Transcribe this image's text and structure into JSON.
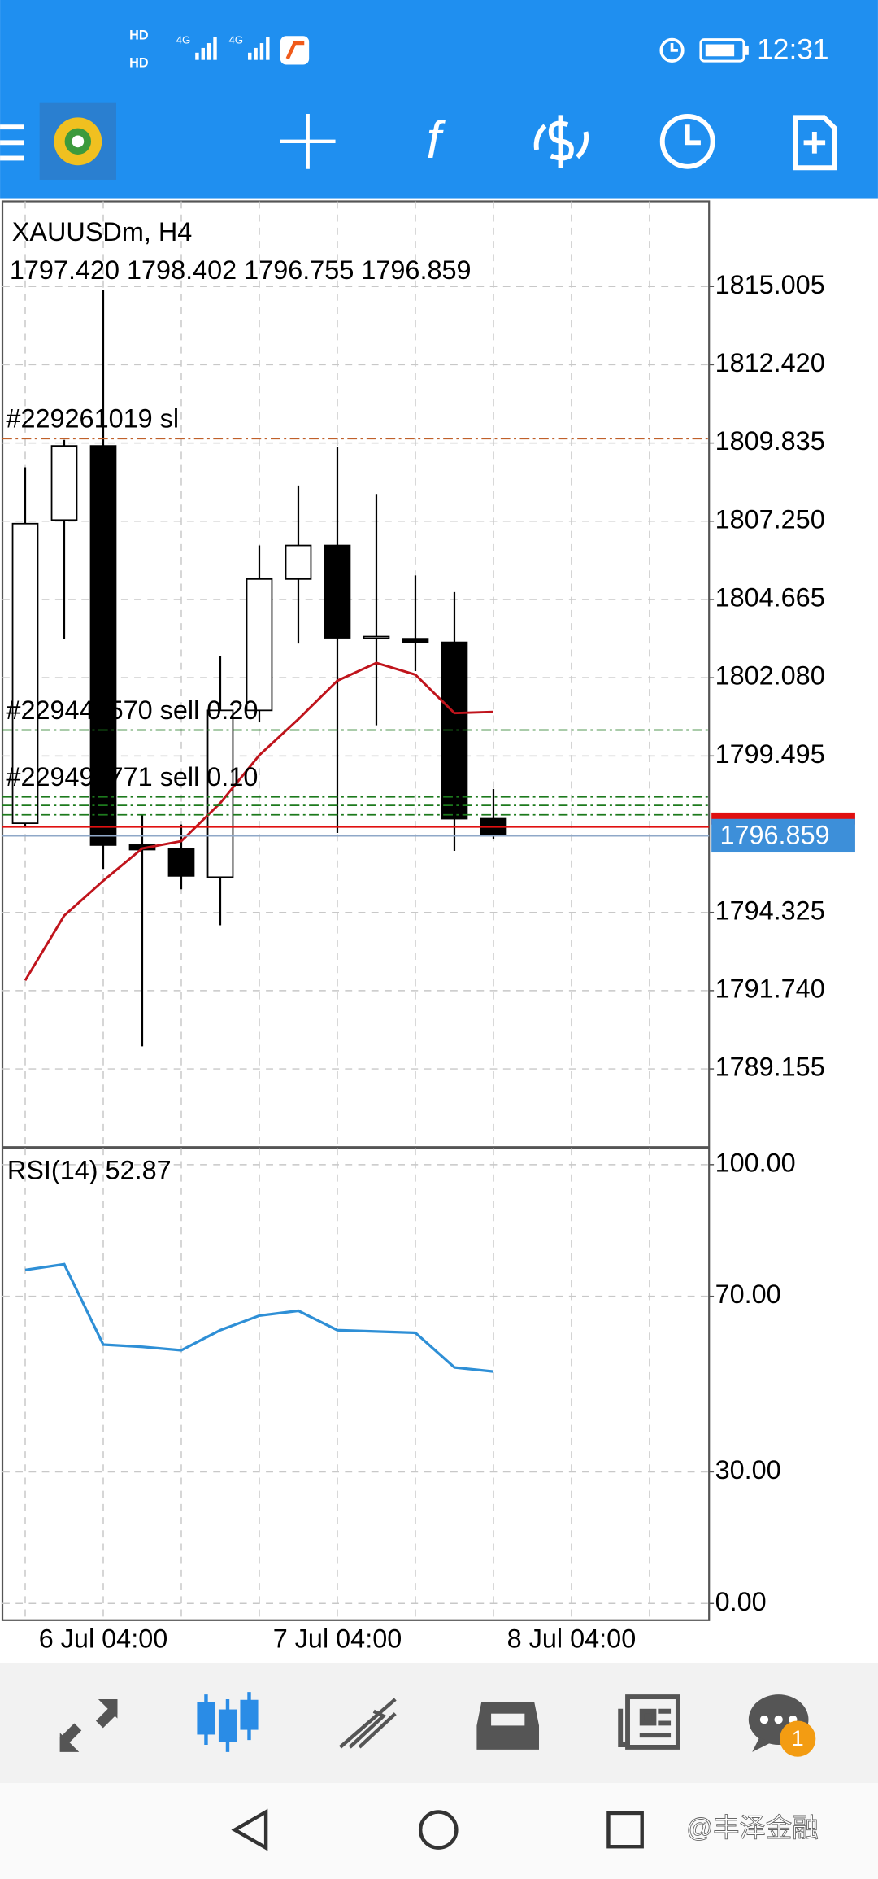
{
  "status_bar": {
    "sim_labels": [
      "HD",
      "HD"
    ],
    "network_labels": [
      "4G",
      "4G"
    ],
    "time": "12:31"
  },
  "toolbar": {
    "function_icon": "f"
  },
  "chart_data": [
    {
      "type": "candlestick",
      "title": "XAUUSDm, H4",
      "subtitle": "1797.420 1798.402 1796.755 1796.859",
      "categories": [
        null,
        null,
        "6 Jul 04:00",
        null,
        null,
        null,
        null,
        null,
        "7 Jul 04:00",
        null,
        null,
        null,
        null,
        null,
        "8 Jul 04:00",
        null,
        null
      ],
      "open": [
        1797.27,
        1807.29,
        1809.74,
        1796.55,
        1796.44,
        1795.49,
        1801.0,
        1805.34,
        1806.45,
        1803.44,
        1803.37,
        1803.25,
        1797.42,
        null,
        null,
        null,
        null
      ],
      "high": [
        1809.03,
        1809.94,
        1814.89,
        1797.55,
        1797.23,
        1802.81,
        1806.45,
        1808.43,
        1809.7,
        1808.15,
        1805.46,
        1804.91,
        1798.402,
        null,
        null,
        null,
        null
      ],
      "low": [
        1797.15,
        1803.37,
        1795.76,
        1789.9,
        1795.09,
        1793.9,
        1800.63,
        1803.21,
        1796.95,
        1800.51,
        1802.3,
        1796.36,
        1796.755,
        null,
        null,
        null,
        null
      ],
      "close": [
        1807.17,
        1809.74,
        1796.55,
        1796.4,
        1795.53,
        1801.0,
        1805.34,
        1806.45,
        1803.4,
        1803.44,
        1803.25,
        1797.42,
        1796.859,
        null,
        null,
        null,
        null
      ],
      "up_color": "#ffffff",
      "down_color": "#000000",
      "ma_values": [
        1792.08,
        1794.22,
        1795.37,
        1796.44,
        1796.68,
        1797.94,
        1799.52,
        1800.71,
        1801.98,
        1802.57,
        1802.18,
        1800.91,
        1800.95,
        null,
        null,
        null,
        null
      ],
      "ma_color": "#c0141c",
      "ylim": [
        1786.58,
        1817.82
      ],
      "yticks": [
        1815.005,
        {
          "value": 1812.42,
          "label": "1812.420"
        },
        1809.835,
        {
          "value": 1807.25,
          "label": "1807.250"
        },
        1804.665,
        {
          "value": 1802.08,
          "label": "1802.080"
        },
        1799.495,
        1794.325,
        {
          "value": 1791.74,
          "label": "1791.740"
        },
        1789.155
      ],
      "levels": [
        {
          "value": 1809.98,
          "label": "#229261019 sl",
          "color": "#c0602a",
          "style": "dashdot"
        },
        {
          "value": 1800.35,
          "label": "#229443570 sell 0.20",
          "color": "#1d7a1d",
          "style": "dashdot"
        },
        {
          "value": 1798.14,
          "label": "#229495771 sell 0.10",
          "color": "#1d7a1d",
          "style": "dashdot"
        },
        {
          "value": 1797.86,
          "color": "#1d7a1d",
          "style": "dashdot"
        },
        {
          "value": 1797.55,
          "color": "#1d7a1d",
          "style": "dashdot"
        },
        {
          "value": 1797.15,
          "color": "#e01010",
          "style": "solid"
        }
      ],
      "current_price": 1796.859,
      "current_color": "#3d8fd9",
      "grid": true
    },
    {
      "type": "line",
      "title": "RSI(14) 52.87",
      "values": [
        76.0,
        77.3,
        59.0,
        58.5,
        57.7,
        62.3,
        65.6,
        66.7,
        62.3,
        62.0,
        61.7,
        53.8,
        52.87,
        null,
        null,
        null,
        null
      ],
      "color": "#2e8fd6",
      "ylim": [
        -3.8,
        103.8
      ],
      "yticks": [
        {
          "value": 100,
          "label": "100.00"
        },
        {
          "value": 70,
          "label": "70.00"
        },
        {
          "value": 30,
          "label": "30.00"
        },
        {
          "value": 0,
          "label": "0.00"
        }
      ],
      "grid": true
    }
  ],
  "bottom_nav": {
    "badge": "1"
  },
  "watermark": "@丰泽金融"
}
